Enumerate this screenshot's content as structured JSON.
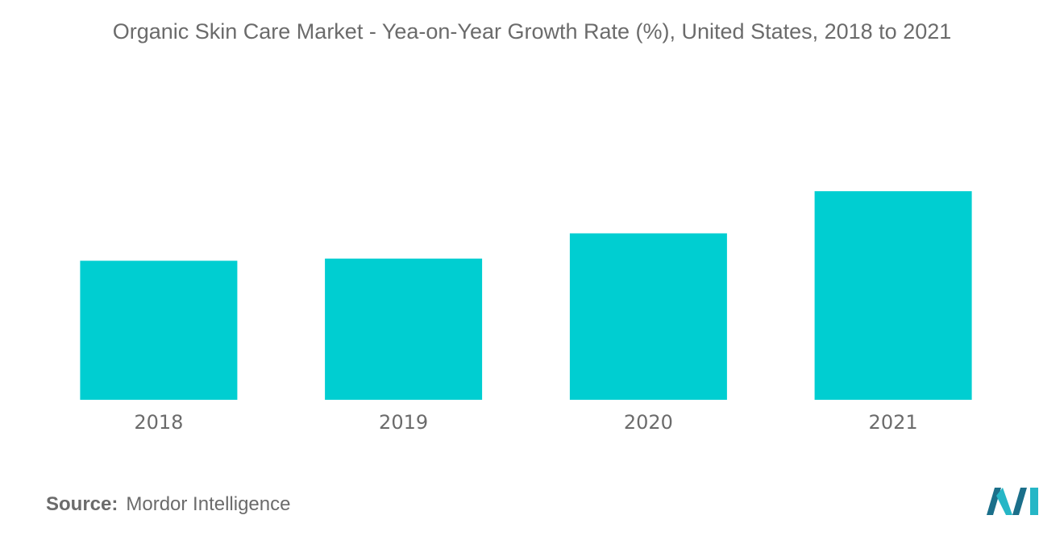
{
  "colors": {
    "bar": "#00ced1",
    "text": "#6b6b6b",
    "logo_dark": "#1b6f8a",
    "logo_light": "#26b6c6"
  },
  "chart_data": {
    "type": "bar",
    "title": "Organic Skin Care Market - Yea-on-Year Growth Rate (%), United States, 2018 to 2021",
    "xlabel": "",
    "ylabel": "",
    "categories": [
      "2018",
      "2019",
      "2020",
      "2021"
    ],
    "values": [
      6.6,
      6.7,
      7.9,
      9.9
    ],
    "ylim": [
      0,
      14
    ],
    "grid": false,
    "legend": "none",
    "axis_values_shown": false
  },
  "footer": {
    "source_label": "Source:",
    "source_value": "Mordor Intelligence"
  },
  "logo": {
    "icon": "mordor-intelligence-logo-icon"
  }
}
